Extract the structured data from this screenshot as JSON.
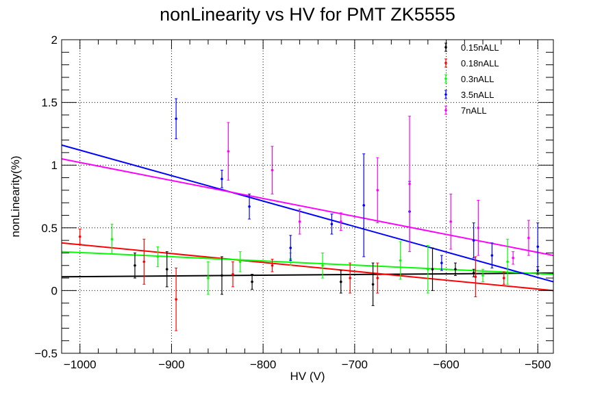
{
  "chart_data": {
    "type": "scatter",
    "title": "nonLinearity vs HV for PMT ZK5555",
    "xlabel": "HV (V)",
    "ylabel": "nonLinearity(%)",
    "xlim": [
      -1020,
      -483
    ],
    "ylim": [
      -0.5,
      2
    ],
    "x_ticks": [
      -1000,
      -900,
      -800,
      -700,
      -600,
      -500
    ],
    "x_tick_labels": [
      "−1000",
      "−900",
      "−800",
      "−700",
      "−600",
      "−500"
    ],
    "y_ticks": [
      -0.5,
      0,
      0.5,
      1,
      1.5,
      2
    ],
    "y_tick_labels": [
      "−0.5",
      "0",
      "0.5",
      "1",
      "1.5",
      "2"
    ],
    "grid": true,
    "legend_position": "top-right",
    "series": [
      {
        "name": "0.15nALL",
        "color": "#000000",
        "points": [
          {
            "x": -940,
            "y": 0.2,
            "err": 0.1
          },
          {
            "x": -905,
            "y": 0.17,
            "err": 0.14
          },
          {
            "x": -845,
            "y": 0.12,
            "err": 0.15
          },
          {
            "x": -812,
            "y": 0.07,
            "err": 0.06
          },
          {
            "x": -715,
            "y": 0.07,
            "err": 0.09
          },
          {
            "x": -680,
            "y": 0.05,
            "err": 0.17
          },
          {
            "x": -615,
            "y": 0.17,
            "err": 0.17
          },
          {
            "x": -590,
            "y": 0.17,
            "err": 0.05
          },
          {
            "x": -570,
            "y": 0.14,
            "err": 0.03
          },
          {
            "x": -500,
            "y": 0.16,
            "err": 0.03
          }
        ],
        "fit": {
          "x": [
            -1020,
            -483
          ],
          "y": [
            0.11,
            0.14
          ]
        }
      },
      {
        "name": "0.18nALL",
        "color": "#ff0000",
        "points": [
          {
            "x": -1000,
            "y": 0.43,
            "err": 0.06
          },
          {
            "x": -930,
            "y": 0.23,
            "err": 0.18
          },
          {
            "x": -895,
            "y": -0.07,
            "err": 0.25
          },
          {
            "x": -833,
            "y": 0.13,
            "err": 0.1
          },
          {
            "x": -790,
            "y": 0.2,
            "err": 0.05
          },
          {
            "x": -705,
            "y": 0.1,
            "err": 0.12
          },
          {
            "x": -675,
            "y": 0.1,
            "err": 0.12
          },
          {
            "x": -568,
            "y": 0.11,
            "err": 0.16
          },
          {
            "x": -537,
            "y": 0.1,
            "err": 0.05
          }
        ],
        "fit": {
          "x": [
            -1020,
            -483
          ],
          "y": [
            0.38,
            0.0
          ]
        }
      },
      {
        "name": "0.3nALL",
        "color": "#00ff00",
        "points": [
          {
            "x": -965,
            "y": 0.41,
            "err": 0.12
          },
          {
            "x": -915,
            "y": 0.27,
            "err": 0.08
          },
          {
            "x": -860,
            "y": 0.1,
            "err": 0.13
          },
          {
            "x": -825,
            "y": 0.23,
            "err": 0.08
          },
          {
            "x": -770,
            "y": 0.25,
            "err": 0.05
          },
          {
            "x": -735,
            "y": 0.2,
            "err": 0.1
          },
          {
            "x": -650,
            "y": 0.24,
            "err": 0.15
          },
          {
            "x": -620,
            "y": 0.17,
            "err": 0.19
          },
          {
            "x": -560,
            "y": 0.12,
            "err": 0.05
          },
          {
            "x": -533,
            "y": 0.23,
            "err": 0.18
          }
        ],
        "fit": {
          "x": [
            -1020,
            -483
          ],
          "y": [
            0.31,
            0.13
          ]
        }
      },
      {
        "name": "3.5nALL",
        "color": "#0000ff",
        "points": [
          {
            "x": -895,
            "y": 1.37,
            "err": 0.16
          },
          {
            "x": -845,
            "y": 0.89,
            "err": 0.07
          },
          {
            "x": -815,
            "y": 0.67,
            "err": 0.1
          },
          {
            "x": -770,
            "y": 0.34,
            "err": 0.1
          },
          {
            "x": -725,
            "y": 0.53,
            "err": 0.08
          },
          {
            "x": -690,
            "y": 0.68,
            "err": 0.41
          },
          {
            "x": -640,
            "y": 0.63,
            "err": 0.24
          },
          {
            "x": -605,
            "y": 0.22,
            "err": 0.06
          },
          {
            "x": -570,
            "y": 0.4,
            "err": 0.14
          },
          {
            "x": -550,
            "y": 0.28,
            "err": 0.1
          },
          {
            "x": -500,
            "y": 0.35,
            "err": 0.19
          }
        ],
        "fit": {
          "x": [
            -1020,
            -483
          ],
          "y": [
            1.16,
            0.07
          ]
        }
      },
      {
        "name": "7nALL",
        "color": "#ff00ff",
        "points": [
          {
            "x": -838,
            "y": 1.11,
            "err": 0.23
          },
          {
            "x": -790,
            "y": 0.96,
            "err": 0.19
          },
          {
            "x": -760,
            "y": 0.55,
            "err": 0.1
          },
          {
            "x": -715,
            "y": 0.55,
            "err": 0.07
          },
          {
            "x": -675,
            "y": 0.8,
            "err": 0.26
          },
          {
            "x": -640,
            "y": 0.85,
            "err": 0.54
          },
          {
            "x": -595,
            "y": 0.55,
            "err": 0.22
          },
          {
            "x": -565,
            "y": 0.5,
            "err": 0.22
          },
          {
            "x": -527,
            "y": 0.26,
            "err": 0.05
          },
          {
            "x": -510,
            "y": 0.42,
            "err": 0.14
          }
        ],
        "fit": {
          "x": [
            -1020,
            -483
          ],
          "y": [
            1.05,
            0.28
          ]
        }
      }
    ]
  }
}
